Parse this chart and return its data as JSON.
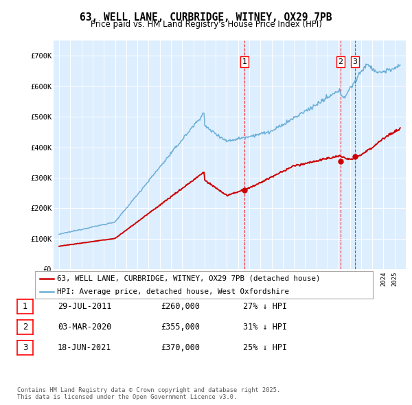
{
  "title": "63, WELL LANE, CURBRIDGE, WITNEY, OX29 7PB",
  "subtitle": "Price paid vs. HM Land Registry's House Price Index (HPI)",
  "hpi_label": "HPI: Average price, detached house, West Oxfordshire",
  "price_label": "63, WELL LANE, CURBRIDGE, WITNEY, OX29 7PB (detached house)",
  "hpi_color": "#6baed6",
  "price_color": "#cc0000",
  "bg_color": "#ddeeff",
  "ylim": [
    0,
    750000
  ],
  "yticks": [
    0,
    100000,
    200000,
    300000,
    400000,
    500000,
    600000,
    700000
  ],
  "ytick_labels": [
    "£0",
    "£100K",
    "£200K",
    "£300K",
    "£400K",
    "£500K",
    "£600K",
    "£700K"
  ],
  "sale_dates_decimal": [
    2011.574,
    2020.169,
    2021.463
  ],
  "sale_prices": [
    260000,
    355000,
    370000
  ],
  "sale_labels": [
    "1",
    "2",
    "3"
  ],
  "table_rows": [
    {
      "num": "1",
      "date": "29-JUL-2011",
      "price": "£260,000",
      "note": "27% ↓ HPI"
    },
    {
      "num": "2",
      "date": "03-MAR-2020",
      "price": "£355,000",
      "note": "31% ↓ HPI"
    },
    {
      "num": "3",
      "date": "18-JUN-2021",
      "price": "£370,000",
      "note": "25% ↓ HPI"
    }
  ],
  "footer": "Contains HM Land Registry data © Crown copyright and database right 2025.\nThis data is licensed under the Open Government Licence v3.0.",
  "xlim_left": 1994.5,
  "xlim_right": 2026.0
}
